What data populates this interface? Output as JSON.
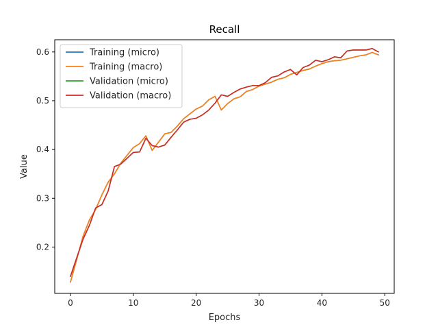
{
  "chart_data": {
    "type": "line",
    "title": "Recall",
    "xlabel": "Epochs",
    "ylabel": "Value",
    "xlim": [
      -2.5,
      51.5
    ],
    "ylim": [
      0.105,
      0.625
    ],
    "x_ticks": [
      0,
      10,
      20,
      30,
      40,
      50
    ],
    "y_ticks": [
      0.2,
      0.3,
      0.4,
      0.5,
      0.6
    ],
    "grid": false,
    "legend_position": "top-left",
    "x": [
      0,
      1,
      2,
      3,
      4,
      5,
      6,
      7,
      8,
      9,
      10,
      11,
      12,
      13,
      14,
      15,
      16,
      17,
      18,
      19,
      20,
      21,
      22,
      23,
      24,
      25,
      26,
      27,
      28,
      29,
      30,
      31,
      32,
      33,
      34,
      35,
      36,
      37,
      38,
      39,
      40,
      41,
      42,
      43,
      44,
      45,
      46,
      47,
      48,
      49
    ],
    "series": [
      {
        "name": "Training (micro)",
        "color": "#1f77b4",
        "values": [
          0.128,
          0.175,
          0.222,
          0.255,
          0.277,
          0.307,
          0.333,
          0.35,
          0.372,
          0.388,
          0.404,
          0.412,
          0.428,
          0.398,
          0.415,
          0.432,
          0.435,
          0.448,
          0.463,
          0.473,
          0.483,
          0.489,
          0.502,
          0.509,
          0.481,
          0.494,
          0.504,
          0.508,
          0.519,
          0.523,
          0.53,
          0.534,
          0.538,
          0.544,
          0.547,
          0.554,
          0.558,
          0.562,
          0.565,
          0.571,
          0.576,
          0.58,
          0.582,
          0.583,
          0.586,
          0.589,
          0.592,
          0.594,
          0.599,
          0.594
        ]
      },
      {
        "name": "Training (macro)",
        "color": "#ff7f0e",
        "values": [
          0.128,
          0.175,
          0.222,
          0.255,
          0.277,
          0.307,
          0.333,
          0.35,
          0.372,
          0.388,
          0.404,
          0.412,
          0.428,
          0.398,
          0.415,
          0.432,
          0.435,
          0.448,
          0.463,
          0.473,
          0.483,
          0.489,
          0.502,
          0.509,
          0.481,
          0.494,
          0.504,
          0.508,
          0.519,
          0.523,
          0.53,
          0.534,
          0.538,
          0.544,
          0.547,
          0.554,
          0.558,
          0.562,
          0.565,
          0.571,
          0.576,
          0.58,
          0.582,
          0.583,
          0.586,
          0.589,
          0.592,
          0.594,
          0.599,
          0.594
        ]
      },
      {
        "name": "Validation (micro)",
        "color": "#2ca02c",
        "values": [
          0.14,
          0.178,
          0.216,
          0.244,
          0.28,
          0.287,
          0.315,
          0.365,
          0.37,
          0.382,
          0.394,
          0.395,
          0.423,
          0.408,
          0.405,
          0.409,
          0.425,
          0.44,
          0.456,
          0.462,
          0.464,
          0.471,
          0.481,
          0.495,
          0.512,
          0.509,
          0.517,
          0.524,
          0.528,
          0.531,
          0.531,
          0.537,
          0.548,
          0.551,
          0.559,
          0.564,
          0.553,
          0.568,
          0.573,
          0.583,
          0.58,
          0.584,
          0.59,
          0.588,
          0.602,
          0.604,
          0.604,
          0.604,
          0.607,
          0.6
        ]
      },
      {
        "name": "Validation (macro)",
        "color": "#d62728",
        "values": [
          0.14,
          0.178,
          0.216,
          0.244,
          0.28,
          0.287,
          0.315,
          0.365,
          0.37,
          0.382,
          0.394,
          0.395,
          0.423,
          0.408,
          0.405,
          0.409,
          0.425,
          0.44,
          0.456,
          0.462,
          0.464,
          0.471,
          0.481,
          0.495,
          0.512,
          0.509,
          0.517,
          0.524,
          0.528,
          0.531,
          0.531,
          0.537,
          0.548,
          0.551,
          0.559,
          0.564,
          0.553,
          0.568,
          0.573,
          0.583,
          0.58,
          0.584,
          0.59,
          0.588,
          0.602,
          0.604,
          0.604,
          0.604,
          0.607,
          0.6
        ]
      }
    ]
  }
}
